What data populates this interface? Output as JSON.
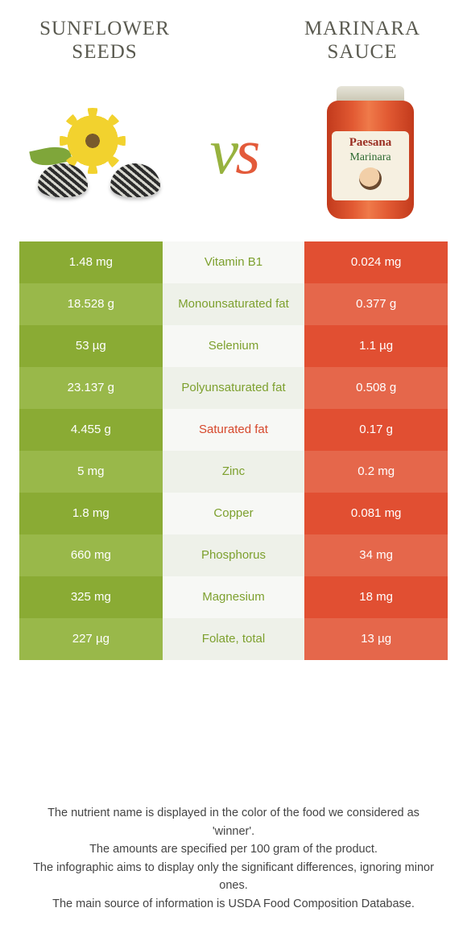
{
  "header": {
    "left_title": "SUNFLOWER SEEDS",
    "right_title": "MARINARA SAUCE"
  },
  "hero": {
    "vs_v": "v",
    "vs_s": "s",
    "jar_brand": "Paesana",
    "jar_flavor": "Marinara"
  },
  "colors": {
    "left_a": "#8aab34",
    "left_b": "#99b84a",
    "mid_a": "#f7f8f5",
    "mid_b": "#eef1e9",
    "right_a": "#e14f32",
    "right_b": "#e5674b",
    "nutrient_green": "#7da02e",
    "nutrient_red": "#d6482c",
    "title_color": "#5a5a50"
  },
  "rows": [
    {
      "left": "1.48 mg",
      "nutrient": "Vitamin B1",
      "winner": "left",
      "right": "0.024 mg"
    },
    {
      "left": "18.528 g",
      "nutrient": "Monounsaturated fat",
      "winner": "left",
      "right": "0.377 g"
    },
    {
      "left": "53 µg",
      "nutrient": "Selenium",
      "winner": "left",
      "right": "1.1 µg"
    },
    {
      "left": "23.137 g",
      "nutrient": "Polyunsaturated fat",
      "winner": "left",
      "right": "0.508 g"
    },
    {
      "left": "4.455 g",
      "nutrient": "Saturated fat",
      "winner": "right",
      "right": "0.17 g"
    },
    {
      "left": "5 mg",
      "nutrient": "Zinc",
      "winner": "left",
      "right": "0.2 mg"
    },
    {
      "left": "1.8 mg",
      "nutrient": "Copper",
      "winner": "left",
      "right": "0.081 mg"
    },
    {
      "left": "660 mg",
      "nutrient": "Phosphorus",
      "winner": "left",
      "right": "34 mg"
    },
    {
      "left": "325 mg",
      "nutrient": "Magnesium",
      "winner": "left",
      "right": "18 mg"
    },
    {
      "left": "227 µg",
      "nutrient": "Folate, total",
      "winner": "left",
      "right": "13 µg"
    }
  ],
  "footer": {
    "line1": "The nutrient name is displayed in the color of the food we considered as 'winner'.",
    "line2": "The amounts are specified per 100 gram of the product.",
    "line3": "The infographic aims to display only the significant differences, ignoring minor ones.",
    "line4": "The main source of information is USDA Food Composition Database."
  }
}
